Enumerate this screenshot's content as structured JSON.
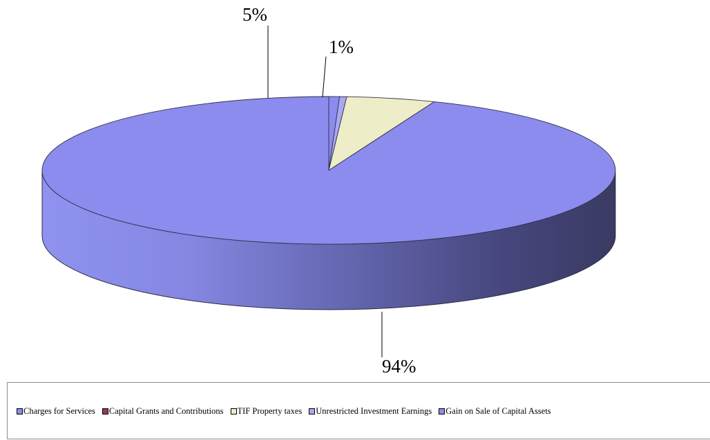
{
  "chart_data": {
    "type": "pie",
    "style": "3d",
    "slices": [
      {
        "label": "Charges for Services",
        "value": 94,
        "display": "94%",
        "color": "#8b8cee"
      },
      {
        "label": "Capital Grants and Contributions",
        "value": 0,
        "display": "",
        "color": "#9a3a52"
      },
      {
        "label": "TIF Property taxes",
        "value": 5,
        "display": "5%",
        "color": "#ededc7"
      },
      {
        "label": "Unrestricted Investment Earnings",
        "value": 0.4,
        "display": "",
        "color": "#a9a8f2"
      },
      {
        "label": "Gain on Sale of Capital Assets",
        "value": 0.6,
        "display": "1%",
        "color": "#8b8cee"
      }
    ],
    "legend_position": "bottom"
  }
}
